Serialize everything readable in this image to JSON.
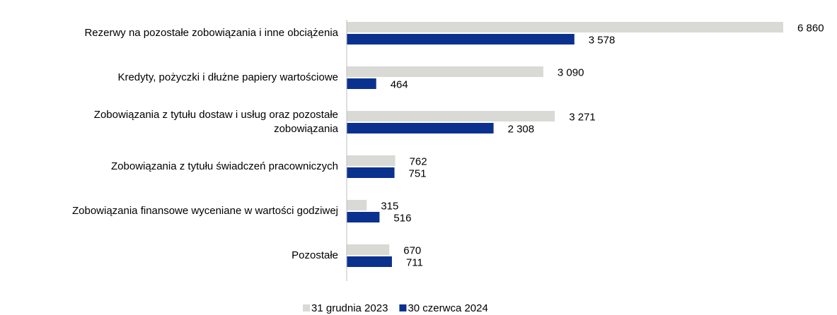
{
  "chart_data": {
    "type": "hbar",
    "categories": [
      "Rezerwy na pozostałe zobowiązania i inne obciążenia",
      "Kredyty, pożyczki i dłużne papiery wartościowe",
      "Zobowiązania z tytułu dostaw i usług oraz pozostałe zobowiązania",
      "Zobowiązania z tytułu świadczeń pracowniczych",
      "Zobowiązania finansowe wyceniane w wartości godziwej",
      "Pozostałe"
    ],
    "series": [
      {
        "name": "31 grudnia 2023",
        "color": "#d9d9d6",
        "values": [
          6860,
          3090,
          3271,
          762,
          315,
          670
        ],
        "value_labels": [
          "6 860",
          "3 090",
          "3 271",
          "762",
          "315",
          "670"
        ]
      },
      {
        "name": "30 czerwca 2024",
        "color": "#0b318f",
        "values": [
          3578,
          464,
          2308,
          751,
          516,
          711
        ],
        "value_labels": [
          "3 578",
          "464",
          "2 308",
          "751",
          "516",
          "711"
        ]
      }
    ],
    "legend": "bottom"
  }
}
